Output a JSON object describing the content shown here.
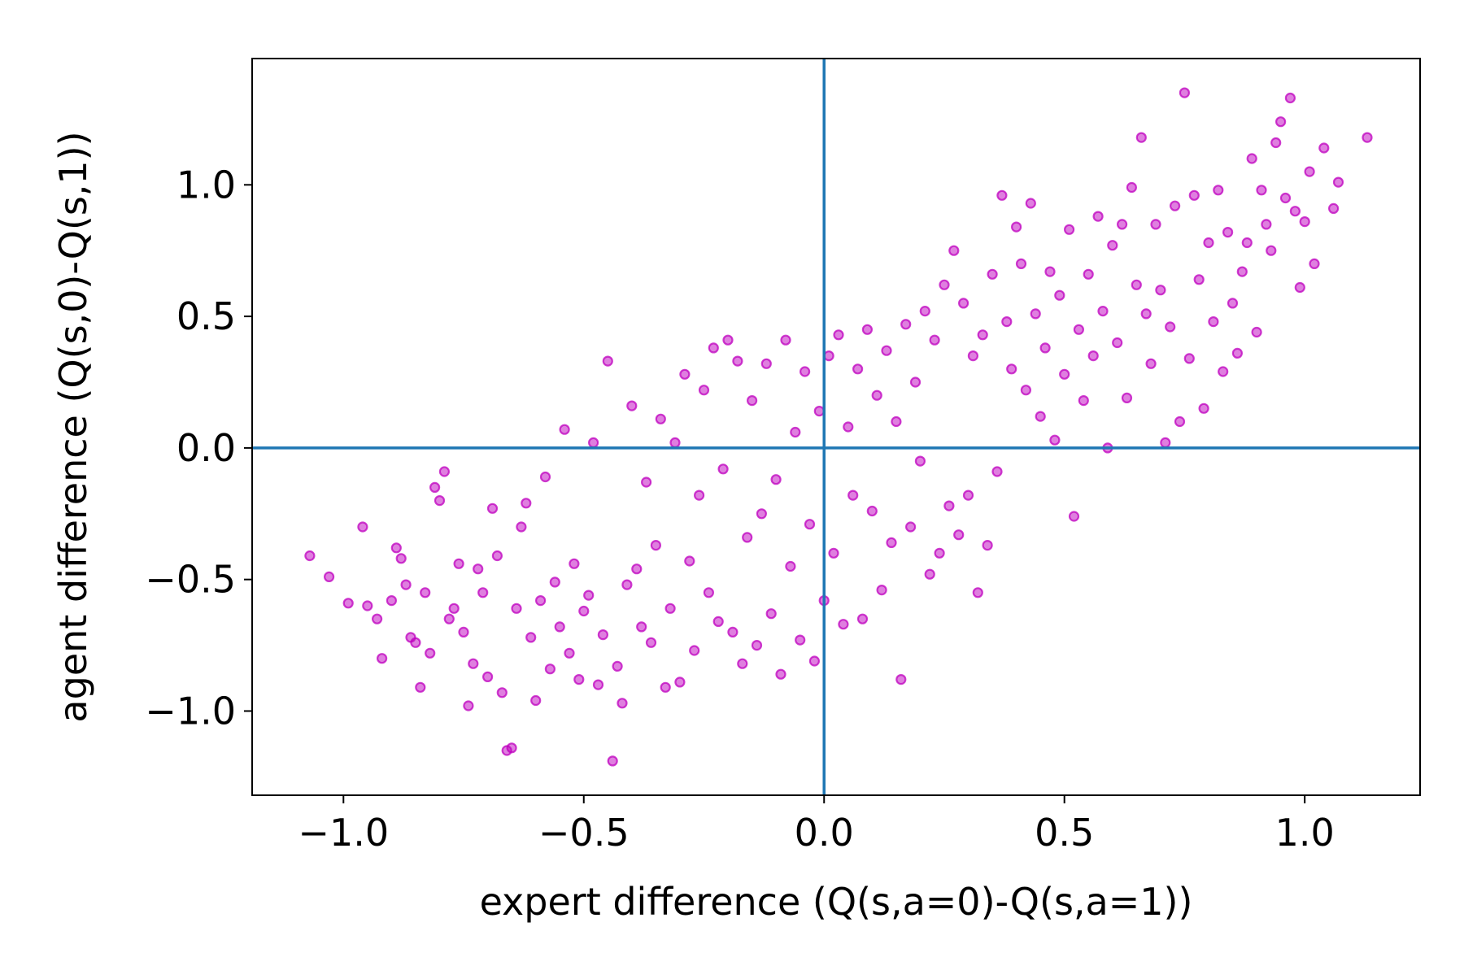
{
  "chart_data": {
    "type": "scatter",
    "title": "",
    "xlabel": "expert difference (Q(s,a=0)-Q(s,a=1))",
    "ylabel": "agent difference (Q(s,0)-Q(s,1))",
    "xlim": [
      -1.19,
      1.24
    ],
    "ylim": [
      -1.32,
      1.48
    ],
    "x_ticks": [
      -1.0,
      -0.5,
      0.0,
      0.5,
      1.0
    ],
    "x_tick_labels": [
      "−1.0",
      "−0.5",
      "0.0",
      "0.5",
      "1.0"
    ],
    "y_ticks": [
      -1.0,
      -0.5,
      0.0,
      0.5,
      1.0
    ],
    "y_tick_labels": [
      "−1.0",
      "−0.5",
      "0.0",
      "0.5",
      "1.0"
    ],
    "grid": false,
    "legend": "none",
    "reference_lines": {
      "vertical_x": 0.0,
      "horizontal_y": 0.0,
      "color": "#1f77b4"
    },
    "marker_color": "#bf00bf",
    "marker_alpha": 0.5,
    "series": [
      {
        "values": [
          [
            -1.07,
            -0.41
          ],
          [
            -1.03,
            -0.49
          ],
          [
            -0.99,
            -0.59
          ],
          [
            -0.96,
            -0.3
          ],
          [
            -0.95,
            -0.6
          ],
          [
            -0.93,
            -0.65
          ],
          [
            -0.92,
            -0.8
          ],
          [
            -0.9,
            -0.58
          ],
          [
            -0.89,
            -0.38
          ],
          [
            -0.88,
            -0.42
          ],
          [
            -0.87,
            -0.52
          ],
          [
            -0.86,
            -0.72
          ],
          [
            -0.85,
            -0.74
          ],
          [
            -0.84,
            -0.91
          ],
          [
            -0.83,
            -0.55
          ],
          [
            -0.82,
            -0.78
          ],
          [
            -0.81,
            -0.15
          ],
          [
            -0.8,
            -0.2
          ],
          [
            -0.79,
            -0.09
          ],
          [
            -0.78,
            -0.65
          ],
          [
            -0.77,
            -0.61
          ],
          [
            -0.76,
            -0.44
          ],
          [
            -0.75,
            -0.7
          ],
          [
            -0.74,
            -0.98
          ],
          [
            -0.73,
            -0.82
          ],
          [
            -0.72,
            -0.46
          ],
          [
            -0.71,
            -0.55
          ],
          [
            -0.7,
            -0.87
          ],
          [
            -0.69,
            -0.23
          ],
          [
            -0.68,
            -0.41
          ],
          [
            -0.67,
            -0.93
          ],
          [
            -0.66,
            -1.15
          ],
          [
            -0.65,
            -1.14
          ],
          [
            -0.64,
            -0.61
          ],
          [
            -0.63,
            -0.3
          ],
          [
            -0.62,
            -0.21
          ],
          [
            -0.61,
            -0.72
          ],
          [
            -0.6,
            -0.96
          ],
          [
            -0.59,
            -0.58
          ],
          [
            -0.58,
            -0.11
          ],
          [
            -0.57,
            -0.84
          ],
          [
            -0.56,
            -0.51
          ],
          [
            -0.55,
            -0.68
          ],
          [
            -0.54,
            0.07
          ],
          [
            -0.53,
            -0.78
          ],
          [
            -0.52,
            -0.44
          ],
          [
            -0.51,
            -0.88
          ],
          [
            -0.5,
            -0.62
          ],
          [
            -0.49,
            -0.56
          ],
          [
            -0.48,
            0.02
          ],
          [
            -0.47,
            -0.9
          ],
          [
            -0.46,
            -0.71
          ],
          [
            -0.45,
            0.33
          ],
          [
            -0.44,
            -1.19
          ],
          [
            -0.43,
            -0.83
          ],
          [
            -0.42,
            -0.97
          ],
          [
            -0.41,
            -0.52
          ],
          [
            -0.4,
            0.16
          ],
          [
            -0.39,
            -0.46
          ],
          [
            -0.38,
            -0.68
          ],
          [
            -0.37,
            -0.13
          ],
          [
            -0.36,
            -0.74
          ],
          [
            -0.35,
            -0.37
          ],
          [
            -0.34,
            0.11
          ],
          [
            -0.33,
            -0.91
          ],
          [
            -0.32,
            -0.61
          ],
          [
            -0.31,
            0.02
          ],
          [
            -0.3,
            -0.89
          ],
          [
            -0.29,
            0.28
          ],
          [
            -0.28,
            -0.43
          ],
          [
            -0.27,
            -0.77
          ],
          [
            -0.26,
            -0.18
          ],
          [
            -0.25,
            0.22
          ],
          [
            -0.24,
            -0.55
          ],
          [
            -0.23,
            0.38
          ],
          [
            -0.22,
            -0.66
          ],
          [
            -0.21,
            -0.08
          ],
          [
            -0.2,
            0.41
          ],
          [
            -0.19,
            -0.7
          ],
          [
            -0.18,
            0.33
          ],
          [
            -0.17,
            -0.82
          ],
          [
            -0.16,
            -0.34
          ],
          [
            -0.15,
            0.18
          ],
          [
            -0.14,
            -0.75
          ],
          [
            -0.13,
            -0.25
          ],
          [
            -0.12,
            0.32
          ],
          [
            -0.11,
            -0.63
          ],
          [
            -0.1,
            -0.12
          ],
          [
            -0.09,
            -0.86
          ],
          [
            -0.08,
            0.41
          ],
          [
            -0.07,
            -0.45
          ],
          [
            -0.06,
            0.06
          ],
          [
            -0.05,
            -0.73
          ],
          [
            -0.04,
            0.29
          ],
          [
            -0.03,
            -0.29
          ],
          [
            -0.02,
            -0.81
          ],
          [
            -0.01,
            0.14
          ],
          [
            0.0,
            -0.58
          ],
          [
            0.01,
            0.35
          ],
          [
            0.02,
            -0.4
          ],
          [
            0.03,
            0.43
          ],
          [
            0.04,
            -0.67
          ],
          [
            0.05,
            0.08
          ],
          [
            0.06,
            -0.18
          ],
          [
            0.07,
            0.3
          ],
          [
            0.08,
            -0.65
          ],
          [
            0.09,
            0.45
          ],
          [
            0.1,
            -0.24
          ],
          [
            0.11,
            0.2
          ],
          [
            0.12,
            -0.54
          ],
          [
            0.13,
            0.37
          ],
          [
            0.14,
            -0.36
          ],
          [
            0.15,
            0.1
          ],
          [
            0.16,
            -0.88
          ],
          [
            0.17,
            0.47
          ],
          [
            0.18,
            -0.3
          ],
          [
            0.19,
            0.25
          ],
          [
            0.2,
            -0.05
          ],
          [
            0.21,
            0.52
          ],
          [
            0.22,
            -0.48
          ],
          [
            0.23,
            0.41
          ],
          [
            0.24,
            -0.4
          ],
          [
            0.25,
            0.62
          ],
          [
            0.26,
            -0.22
          ],
          [
            0.27,
            0.75
          ],
          [
            0.28,
            -0.33
          ],
          [
            0.29,
            0.55
          ],
          [
            0.3,
            -0.18
          ],
          [
            0.31,
            0.35
          ],
          [
            0.32,
            -0.55
          ],
          [
            0.33,
            0.43
          ],
          [
            0.34,
            -0.37
          ],
          [
            0.35,
            0.66
          ],
          [
            0.36,
            -0.09
          ],
          [
            0.37,
            0.96
          ],
          [
            0.38,
            0.48
          ],
          [
            0.39,
            0.3
          ],
          [
            0.4,
            0.84
          ],
          [
            0.41,
            0.7
          ],
          [
            0.42,
            0.22
          ],
          [
            0.43,
            0.93
          ],
          [
            0.44,
            0.51
          ],
          [
            0.45,
            0.12
          ],
          [
            0.46,
            0.38
          ],
          [
            0.47,
            0.67
          ],
          [
            0.48,
            0.03
          ],
          [
            0.49,
            0.58
          ],
          [
            0.5,
            0.28
          ],
          [
            0.51,
            0.83
          ],
          [
            0.52,
            -0.26
          ],
          [
            0.53,
            0.45
          ],
          [
            0.54,
            0.18
          ],
          [
            0.55,
            0.66
          ],
          [
            0.56,
            0.35
          ],
          [
            0.57,
            0.88
          ],
          [
            0.58,
            0.52
          ],
          [
            0.59,
            0.0
          ],
          [
            0.6,
            0.77
          ],
          [
            0.61,
            0.4
          ],
          [
            0.62,
            0.85
          ],
          [
            0.63,
            0.19
          ],
          [
            0.64,
            0.99
          ],
          [
            0.65,
            0.62
          ],
          [
            0.66,
            1.18
          ],
          [
            0.67,
            0.51
          ],
          [
            0.68,
            0.32
          ],
          [
            0.69,
            0.85
          ],
          [
            0.7,
            0.6
          ],
          [
            0.71,
            0.02
          ],
          [
            0.72,
            0.46
          ],
          [
            0.73,
            0.92
          ],
          [
            0.74,
            0.1
          ],
          [
            0.75,
            1.35
          ],
          [
            0.76,
            0.34
          ],
          [
            0.77,
            0.96
          ],
          [
            0.78,
            0.64
          ],
          [
            0.79,
            0.15
          ],
          [
            0.8,
            0.78
          ],
          [
            0.81,
            0.48
          ],
          [
            0.82,
            0.98
          ],
          [
            0.83,
            0.29
          ],
          [
            0.84,
            0.82
          ],
          [
            0.85,
            0.55
          ],
          [
            0.86,
            0.36
          ],
          [
            0.87,
            0.67
          ],
          [
            0.88,
            0.78
          ],
          [
            0.89,
            1.1
          ],
          [
            0.9,
            0.44
          ],
          [
            0.91,
            0.98
          ],
          [
            0.92,
            0.85
          ],
          [
            0.93,
            0.75
          ],
          [
            0.94,
            1.16
          ],
          [
            0.95,
            1.24
          ],
          [
            0.96,
            0.95
          ],
          [
            0.97,
            1.33
          ],
          [
            0.98,
            0.9
          ],
          [
            0.99,
            0.61
          ],
          [
            1.0,
            0.86
          ],
          [
            1.01,
            1.05
          ],
          [
            1.02,
            0.7
          ],
          [
            1.04,
            1.14
          ],
          [
            1.06,
            0.91
          ],
          [
            1.07,
            1.01
          ],
          [
            1.13,
            1.18
          ]
        ]
      }
    ]
  }
}
